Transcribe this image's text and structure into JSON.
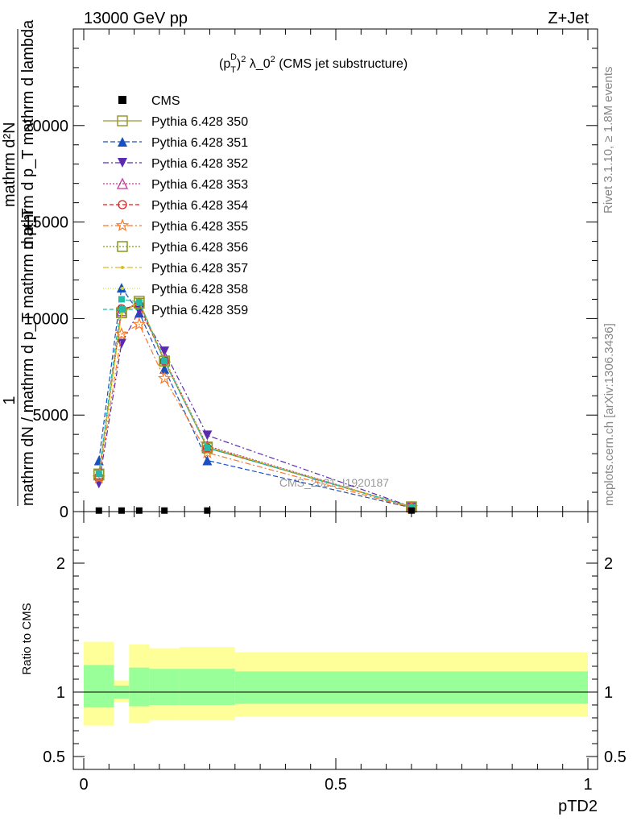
{
  "header": {
    "energy_label": "13000 GeV pp",
    "process_label": "Z+Jet"
  },
  "side_text": {
    "rivet": "Rivet 3.1.10, ≥ 1.8M events",
    "mcplots": "mcplots.cern.ch [arXiv:1306.3436]"
  },
  "watermark": "CMS_2021_I1920187",
  "colors": {
    "cms": "#000000",
    "band_outer": "#ffff99",
    "band_inner": "#99ff99"
  },
  "chart_data": [
    {
      "type": "line",
      "title": "(p_T^D)^2 λ_0^2 (CMS jet substructure)",
      "title_parts": {
        "open": "(p",
        "sup": "D",
        "sub": "T",
        "close": ")",
        "pow": "2",
        "rest": " λ_0",
        "pow2": "2",
        "tail": " (CMS jet substructure)"
      },
      "ylabel_parts": [
        "1",
        "mathrm dN / mathrm d p_T mathrm d p_T",
        "mathrm d²N",
        "mathrm d p_T mathrm d lambda"
      ],
      "xlim": [
        0,
        1
      ],
      "ylim": [
        0,
        25000
      ],
      "yticks": [
        0,
        5000,
        10000,
        15000,
        20000
      ],
      "ytick_labels": [
        "0",
        "5000",
        "10000",
        "15000",
        "20000"
      ],
      "grid": false,
      "legend_position": "top-left",
      "x": [
        0.03,
        0.075,
        0.11,
        0.16,
        0.245,
        0.65
      ],
      "cms": {
        "name": "CMS",
        "values": [
          12,
          12,
          12,
          12,
          12,
          12
        ]
      },
      "series": [
        {
          "name": "Pythia 6.428 350",
          "color": "#999933",
          "marker": "square-open",
          "dash": "",
          "values": [
            1950,
            10300,
            10900,
            7800,
            3350,
            250
          ]
        },
        {
          "name": "Pythia 6.428 351",
          "color": "#1a4fbf",
          "marker": "triangle-up-filled",
          "dash": "6,3",
          "values": [
            2650,
            11600,
            10300,
            7400,
            2650,
            200
          ]
        },
        {
          "name": "Pythia 6.428 352",
          "color": "#5a2ab0",
          "marker": "triangle-down-filled",
          "dash": "7,3,2,3",
          "values": [
            1450,
            8700,
            10400,
            8300,
            3950,
            250
          ]
        },
        {
          "name": "Pythia 6.428 353",
          "color": "#cc3399",
          "marker": "triangle-up-open",
          "dash": "2,2",
          "values": [
            1900,
            10400,
            10800,
            7900,
            3400,
            250
          ]
        },
        {
          "name": "Pythia 6.428 354",
          "color": "#dd2222",
          "marker": "circle-open",
          "dash": "5,3",
          "values": [
            1800,
            10500,
            10700,
            7800,
            3300,
            240
          ]
        },
        {
          "name": "Pythia 6.428 355",
          "color": "#ff7722",
          "marker": "star-open",
          "dash": "7,3,2,3",
          "values": [
            1750,
            9200,
            9700,
            6900,
            3050,
            210
          ]
        },
        {
          "name": "Pythia 6.428 356",
          "color": "#889922",
          "marker": "square-open",
          "dash": "2,2",
          "values": [
            1900,
            10300,
            10800,
            7800,
            3300,
            240
          ]
        },
        {
          "name": "Pythia 6.428 357",
          "color": "#ddbb22",
          "marker": "dot-filled",
          "dash": "7,3,2,3",
          "values": [
            1900,
            10250,
            10850,
            7850,
            3350,
            245
          ]
        },
        {
          "name": "Pythia 6.428 358",
          "color": "#ccdd33",
          "marker": "dot-filled",
          "dash": "1,2",
          "values": [
            1900,
            10250,
            10850,
            7850,
            3350,
            245
          ]
        },
        {
          "name": "Pythia 6.428 359",
          "color": "#22bbaa",
          "marker": "square-filled",
          "dash": "5,3",
          "values": [
            1950,
            11000,
            10850,
            7800,
            3300,
            245
          ]
        }
      ]
    },
    {
      "type": "area",
      "title": "",
      "xlabel": "pTD2",
      "ylabel": "Ratio to CMS",
      "xlim": [
        0,
        1
      ],
      "ylim": [
        0.4,
        2.4
      ],
      "xticks": [
        0,
        0.5,
        1
      ],
      "xtick_labels": [
        "0",
        "0.5",
        "1"
      ],
      "yticks": [
        0.5,
        1,
        2
      ],
      "ytick_labels": [
        "0.5",
        "1",
        "2"
      ],
      "reference_line": 1,
      "grid": false,
      "bins": [
        {
          "x0": 0.0,
          "x1": 0.06,
          "outer": [
            0.74,
            1.39
          ],
          "inner": [
            0.88,
            1.21
          ]
        },
        {
          "x0": 0.06,
          "x1": 0.09,
          "outer": [
            0.92,
            1.09
          ],
          "inner": [
            0.95,
            1.05
          ]
        },
        {
          "x0": 0.09,
          "x1": 0.13,
          "outer": [
            0.76,
            1.37
          ],
          "inner": [
            0.89,
            1.19
          ]
        },
        {
          "x0": 0.13,
          "x1": 0.19,
          "outer": [
            0.78,
            1.34
          ],
          "inner": [
            0.9,
            1.18
          ]
        },
        {
          "x0": 0.19,
          "x1": 0.3,
          "outer": [
            0.78,
            1.35
          ],
          "inner": [
            0.9,
            1.18
          ]
        },
        {
          "x0": 0.3,
          "x1": 1.0,
          "outer": [
            0.81,
            1.31
          ],
          "inner": [
            0.91,
            1.16
          ]
        }
      ]
    }
  ]
}
